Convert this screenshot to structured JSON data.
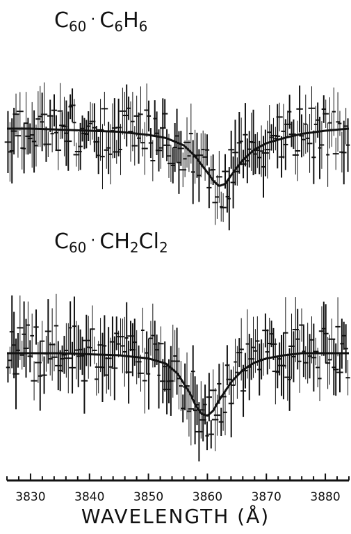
{
  "chart_data": [
    {
      "type": "line",
      "label_parts": {
        "a": "C",
        "a_sub": "60",
        "b": "C",
        "b_sub": "6",
        "c": "H",
        "c_sub": "6"
      },
      "series": [
        {
          "kind": "fit",
          "x": [
            3826,
            3830,
            3835,
            3840,
            3845,
            3850,
            3853,
            3856,
            3858,
            3860,
            3861,
            3862,
            3863,
            3864,
            3866,
            3868,
            3870,
            3873,
            3876,
            3880,
            3884
          ],
          "y": [
            0.0,
            0.0,
            -0.01,
            -0.02,
            -0.03,
            -0.06,
            -0.09,
            -0.16,
            -0.27,
            -0.42,
            -0.5,
            -0.55,
            -0.53,
            -0.45,
            -0.3,
            -0.2,
            -0.14,
            -0.09,
            -0.05,
            -0.02,
            0.0
          ]
        }
      ],
      "noise_amplitude": 0.45,
      "xlim": [
        3826,
        3884
      ]
    },
    {
      "type": "line",
      "label_parts": {
        "a": "C",
        "a_sub": "60",
        "b": "CH",
        "b_sub": "2",
        "c": "Cl",
        "c_sub": "2"
      },
      "series": [
        {
          "kind": "fit",
          "x": [
            3826,
            3830,
            3835,
            3840,
            3845,
            3850,
            3853,
            3855,
            3857,
            3858,
            3859,
            3860,
            3861,
            3862,
            3864,
            3866,
            3868,
            3870,
            3873,
            3876,
            3880,
            3884
          ],
          "y": [
            0.0,
            0.0,
            0.0,
            -0.01,
            -0.02,
            -0.05,
            -0.1,
            -0.2,
            -0.38,
            -0.5,
            -0.58,
            -0.6,
            -0.55,
            -0.45,
            -0.28,
            -0.16,
            -0.09,
            -0.05,
            -0.02,
            0.0,
            0.0,
            0.0
          ]
        }
      ],
      "noise_amplitude": 0.5,
      "xlim": [
        3826,
        3884
      ]
    }
  ],
  "x_axis": {
    "ticks": [
      3830,
      3840,
      3850,
      3860,
      3870,
      3880
    ],
    "xlabel": "WAVELENGTH (Å)"
  }
}
